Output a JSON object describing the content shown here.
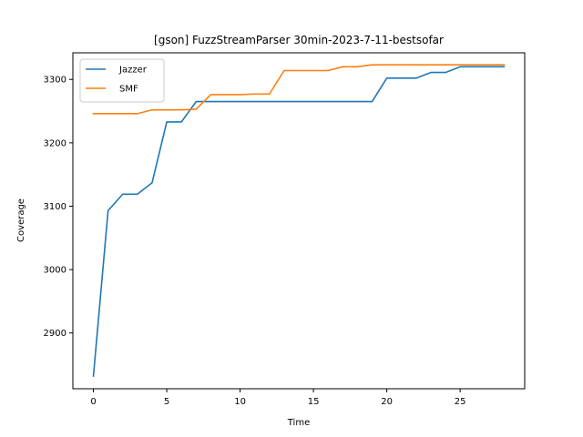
{
  "chart_data": {
    "type": "line",
    "title": "[gson] FuzzStreamParser 30min-2023-7-11-bestsofar",
    "xlabel": "Time",
    "ylabel": "Coverage",
    "xlim": [
      -1.4,
      29.4
    ],
    "ylim": [
      2812,
      3342
    ],
    "xticks": [
      0,
      5,
      10,
      15,
      20,
      25
    ],
    "yticks": [
      2900,
      3000,
      3100,
      3200,
      3300
    ],
    "legend_position": "top-left",
    "grid": false,
    "series": [
      {
        "name": "Jazzer",
        "color": "#1f77b4",
        "x": [
          0,
          1,
          2,
          3,
          4,
          5,
          6,
          7,
          8,
          9,
          10,
          11,
          12,
          13,
          14,
          15,
          16,
          17,
          18,
          19,
          20,
          21,
          22,
          23,
          24,
          25,
          26,
          27,
          28
        ],
        "y": [
          2832,
          3093,
          3119,
          3119,
          3137,
          3233,
          3233,
          3265,
          3265,
          3265,
          3265,
          3265,
          3265,
          3265,
          3265,
          3265,
          3265,
          3265,
          3265,
          3265,
          3302,
          3302,
          3302,
          3311,
          3311,
          3320,
          3320,
          3320,
          3320
        ]
      },
      {
        "name": "SMF",
        "color": "#ff7f0e",
        "x": [
          0,
          1,
          2,
          3,
          4,
          5,
          6,
          7,
          8,
          9,
          10,
          11,
          12,
          13,
          14,
          15,
          16,
          17,
          18,
          19,
          20,
          21,
          22,
          23,
          24,
          25,
          26,
          27,
          28
        ],
        "y": [
          3246,
          3246,
          3246,
          3246,
          3252,
          3252,
          3252,
          3253,
          3276,
          3276,
          3276,
          3277,
          3277,
          3314,
          3314,
          3314,
          3314,
          3320,
          3320,
          3323,
          3323,
          3323,
          3323,
          3323,
          3323,
          3323,
          3323,
          3323,
          3323
        ]
      }
    ]
  }
}
